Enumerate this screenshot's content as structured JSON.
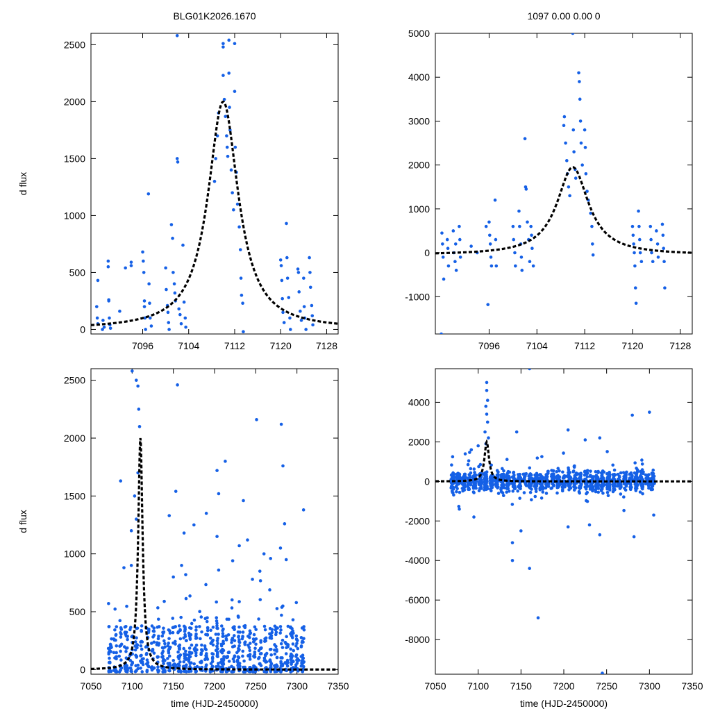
{
  "chart_data": [
    {
      "type": "scatter",
      "panel": "top-left",
      "title": "BLG01K2026.1670",
      "xlabel": "",
      "ylabel": "d flux",
      "xlim": [
        7087,
        7130
      ],
      "ylim": [
        -40,
        2600
      ],
      "xticks": [
        7096,
        7104,
        7112,
        7120,
        7128
      ],
      "yticks": [
        0,
        500,
        1000,
        1500,
        2000,
        2500
      ],
      "model": {
        "t0": 7110,
        "amp": 2000,
        "base": 0,
        "width": 3.2
      },
      "points": [
        [
          7088,
          200
        ],
        [
          7088.1,
          100
        ],
        [
          7088.2,
          430
        ],
        [
          7088.2,
          50
        ],
        [
          7089,
          0
        ],
        [
          7089.1,
          80
        ],
        [
          7089.3,
          20
        ],
        [
          7090,
          600
        ],
        [
          7090,
          550
        ],
        [
          7090.1,
          260
        ],
        [
          7090.1,
          250
        ],
        [
          7090.2,
          100
        ],
        [
          7090.3,
          40
        ],
        [
          7090.4,
          10
        ],
        [
          7092,
          160
        ],
        [
          7093,
          540
        ],
        [
          7094,
          590
        ],
        [
          7094,
          560
        ],
        [
          7096,
          680
        ],
        [
          7096.1,
          600
        ],
        [
          7096.2,
          500
        ],
        [
          7096.3,
          250
        ],
        [
          7096.3,
          200
        ],
        [
          7096.4,
          100
        ],
        [
          7096.5,
          0
        ],
        [
          7097,
          1190
        ],
        [
          7097.1,
          400
        ],
        [
          7097.2,
          230
        ],
        [
          7097.3,
          100
        ],
        [
          7097.5,
          30
        ],
        [
          7100,
          540
        ],
        [
          7100.1,
          350
        ],
        [
          7100.3,
          210
        ],
        [
          7100.4,
          150
        ],
        [
          7100.5,
          60
        ],
        [
          7100.6,
          0
        ],
        [
          7101,
          920
        ],
        [
          7101.2,
          800
        ],
        [
          7101.3,
          500
        ],
        [
          7101.5,
          400
        ],
        [
          7101.6,
          320
        ],
        [
          7101.7,
          250
        ],
        [
          7102,
          2580
        ],
        [
          7102,
          1500
        ],
        [
          7102.1,
          1470
        ],
        [
          7102.3,
          180
        ],
        [
          7102.5,
          130
        ],
        [
          7102.7,
          50
        ],
        [
          7103,
          740
        ],
        [
          7103.2,
          240
        ],
        [
          7103.4,
          100
        ],
        [
          7103.5,
          20
        ],
        [
          7108.5,
          1300
        ],
        [
          7108.7,
          1500
        ],
        [
          7109,
          1700
        ],
        [
          7109.2,
          1900
        ],
        [
          7110,
          2510
        ],
        [
          7110,
          2480
        ],
        [
          7110,
          2230
        ],
        [
          7110.2,
          2020
        ],
        [
          7110.4,
          1870
        ],
        [
          7110.6,
          1700
        ],
        [
          7110.7,
          1600
        ],
        [
          7110.8,
          1520
        ],
        [
          7111,
          2540
        ],
        [
          7111,
          2250
        ],
        [
          7111.1,
          1950
        ],
        [
          7111.2,
          1750
        ],
        [
          7111.4,
          1400
        ],
        [
          7111.6,
          1200
        ],
        [
          7111.8,
          1050
        ],
        [
          7112,
          2510
        ],
        [
          7112,
          2090
        ],
        [
          7112.1,
          1600
        ],
        [
          7112.3,
          1380
        ],
        [
          7112.5,
          1100
        ],
        [
          7112.8,
          900
        ],
        [
          7113,
          700
        ],
        [
          7113.1,
          450
        ],
        [
          7113.2,
          300
        ],
        [
          7113.4,
          230
        ],
        [
          7113.5,
          -20
        ],
        [
          7120,
          610
        ],
        [
          7120.1,
          560
        ],
        [
          7120.2,
          430
        ],
        [
          7120.3,
          270
        ],
        [
          7120.4,
          150
        ],
        [
          7120.6,
          60
        ],
        [
          7121,
          930
        ],
        [
          7121.1,
          630
        ],
        [
          7121.2,
          450
        ],
        [
          7121.4,
          280
        ],
        [
          7121.6,
          100
        ],
        [
          7121.7,
          0
        ],
        [
          7123,
          530
        ],
        [
          7123.1,
          500
        ],
        [
          7123.2,
          330
        ],
        [
          7123.4,
          160
        ],
        [
          7123.6,
          80
        ],
        [
          7124,
          450
        ],
        [
          7124.1,
          200
        ],
        [
          7124.2,
          100
        ],
        [
          7124.4,
          0
        ],
        [
          7125,
          630
        ],
        [
          7125.1,
          500
        ],
        [
          7125.2,
          370
        ],
        [
          7125.4,
          210
        ],
        [
          7125.5,
          120
        ],
        [
          7125.6,
          40
        ]
      ]
    },
    {
      "type": "scatter",
      "panel": "top-right",
      "title": "1097  0.00  0.00  0",
      "xlabel": "",
      "ylabel": "",
      "xlim": [
        7087,
        7130
      ],
      "ylim": [
        -1850,
        5000
      ],
      "xticks": [
        7096,
        7104,
        7112,
        7120,
        7128
      ],
      "yticks": [
        -1000,
        0,
        1000,
        2000,
        3000,
        4000,
        5000
      ],
      "model": {
        "t0": 7110,
        "amp": 2000,
        "base": -50,
        "width": 3.2
      },
      "points": [
        [
          7088,
          -1850
        ],
        [
          7088.1,
          450
        ],
        [
          7088.2,
          200
        ],
        [
          7088.3,
          -100
        ],
        [
          7088.4,
          -600
        ],
        [
          7089,
          300
        ],
        [
          7089.1,
          100
        ],
        [
          7089.2,
          -300
        ],
        [
          7090,
          500
        ],
        [
          7090.1,
          0
        ],
        [
          7090.3,
          -200
        ],
        [
          7090.4,
          200
        ],
        [
          7090.5,
          -400
        ],
        [
          7091,
          600
        ],
        [
          7091.1,
          300
        ],
        [
          7091.2,
          -100
        ],
        [
          7093,
          150
        ],
        [
          7094,
          0
        ],
        [
          7095.5,
          600
        ],
        [
          7096,
          700
        ],
        [
          7096.1,
          400
        ],
        [
          7096.2,
          200
        ],
        [
          7096.3,
          -100
        ],
        [
          7096.4,
          -300
        ],
        [
          7095.8,
          -1180
        ],
        [
          7097,
          1200
        ],
        [
          7097.1,
          300
        ],
        [
          7097.2,
          -300
        ],
        [
          7100,
          600
        ],
        [
          7100.1,
          300
        ],
        [
          7100.3,
          0
        ],
        [
          7100.4,
          -300
        ],
        [
          7101,
          950
        ],
        [
          7101.1,
          600
        ],
        [
          7101.3,
          200
        ],
        [
          7101.4,
          -100
        ],
        [
          7101.5,
          -400
        ],
        [
          7102,
          2600
        ],
        [
          7102.1,
          1500
        ],
        [
          7102.2,
          1450
        ],
        [
          7102.4,
          700
        ],
        [
          7102.6,
          300
        ],
        [
          7102.8,
          -200
        ],
        [
          7103,
          600
        ],
        [
          7103.1,
          400
        ],
        [
          7103.2,
          100
        ],
        [
          7103.4,
          -300
        ],
        [
          7108.5,
          2900
        ],
        [
          7108.6,
          3100
        ],
        [
          7108.8,
          2500
        ],
        [
          7109,
          2100
        ],
        [
          7109.1,
          1800
        ],
        [
          7109.3,
          1500
        ],
        [
          7109.5,
          1300
        ],
        [
          7110,
          5000
        ],
        [
          7110.1,
          2800
        ],
        [
          7110.2,
          2300
        ],
        [
          7110.4,
          1900
        ],
        [
          7110.5,
          1700
        ],
        [
          7111,
          4100
        ],
        [
          7111.1,
          3900
        ],
        [
          7111.2,
          3500
        ],
        [
          7111.3,
          3000
        ],
        [
          7111.4,
          2500
        ],
        [
          7111.6,
          2000
        ],
        [
          7112,
          2800
        ],
        [
          7112.1,
          2400
        ],
        [
          7112.2,
          1800
        ],
        [
          7112.4,
          1400
        ],
        [
          7112.6,
          1200
        ],
        [
          7113,
          900
        ],
        [
          7113.2,
          600
        ],
        [
          7113.3,
          200
        ],
        [
          7113.4,
          -50
        ],
        [
          7120,
          600
        ],
        [
          7120.1,
          400
        ],
        [
          7120.2,
          200
        ],
        [
          7120.3,
          0
        ],
        [
          7120.4,
          -300
        ],
        [
          7120.5,
          -800
        ],
        [
          7120.6,
          -1150
        ],
        [
          7121,
          950
        ],
        [
          7121.1,
          600
        ],
        [
          7121.2,
          300
        ],
        [
          7121.3,
          0
        ],
        [
          7121.5,
          -200
        ],
        [
          7123,
          600
        ],
        [
          7123.1,
          300
        ],
        [
          7123.2,
          0
        ],
        [
          7123.4,
          -200
        ],
        [
          7124,
          500
        ],
        [
          7124.2,
          200
        ],
        [
          7124.3,
          -100
        ],
        [
          7125,
          650
        ],
        [
          7125.1,
          400
        ],
        [
          7125.2,
          100
        ],
        [
          7125.3,
          -200
        ],
        [
          7125.4,
          -800
        ]
      ]
    },
    {
      "type": "scatter",
      "panel": "bottom-left",
      "title": "",
      "xlabel": "time (HJD-2450000)",
      "ylabel": "d flux",
      "xlim": [
        7050,
        7350
      ],
      "ylim": [
        -40,
        2600
      ],
      "xticks": [
        7050,
        7100,
        7150,
        7200,
        7250,
        7300,
        7350
      ],
      "yticks": [
        0,
        500,
        1000,
        1500,
        2000,
        2500
      ],
      "model": {
        "t0": 7110,
        "amp": 2000,
        "base": 0,
        "width": 3.2
      },
      "generated": {
        "t_min": 7073,
        "t_max": 7308,
        "count": 900,
        "typical_max": 400,
        "seed": 11
      },
      "points": [
        [
          7100,
          2580
        ],
        [
          7105,
          2500
        ],
        [
          7107,
          2450
        ],
        [
          7108,
          2250
        ],
        [
          7109,
          2100
        ],
        [
          7107,
          1700
        ],
        [
          7086,
          1630
        ],
        [
          7099,
          1200
        ],
        [
          7103,
          1500
        ],
        [
          7105,
          1300
        ],
        [
          7155,
          2460
        ],
        [
          7251,
          2160
        ],
        [
          7281,
          2120
        ],
        [
          7213,
          1800
        ],
        [
          7203,
          1720
        ],
        [
          7205,
          1520
        ],
        [
          7153,
          1540
        ],
        [
          7145,
          1330
        ],
        [
          7190,
          1350
        ],
        [
          7235,
          1460
        ],
        [
          7283,
          1760
        ],
        [
          7285,
          1260
        ],
        [
          7308,
          1380
        ],
        [
          7175,
          1250
        ],
        [
          7163,
          1180
        ],
        [
          7203,
          1150
        ],
        [
          7240,
          1120
        ],
        [
          7260,
          1000
        ],
        [
          7280,
          1050
        ],
        [
          7090,
          880
        ],
        [
          7099,
          900
        ],
        [
          7160,
          900
        ],
        [
          7205,
          860
        ],
        [
          7222,
          940
        ],
        [
          7230,
          1070
        ],
        [
          7268,
          960
        ],
        [
          7287,
          950
        ],
        [
          7150,
          800
        ],
        [
          7165,
          820
        ],
        [
          7246,
          780
        ],
        [
          7255,
          850
        ]
      ]
    },
    {
      "type": "scatter",
      "panel": "bottom-right",
      "title": "",
      "xlabel": "time (HJD-2450000)",
      "ylabel": "",
      "xlim": [
        7050,
        7350
      ],
      "ylim": [
        -9750,
        5700
      ],
      "xticks": [
        7050,
        7100,
        7150,
        7200,
        7250,
        7300,
        7350
      ],
      "yticks": [
        -8000,
        -6000,
        -4000,
        -2000,
        0,
        2000,
        4000
      ],
      "model": {
        "t0": 7110,
        "amp": 2000,
        "base": 0,
        "width": 3.2
      },
      "generated": {
        "t_min": 7070,
        "t_max": 7308,
        "count": 1300,
        "typical_spread": 450,
        "seed": 23
      },
      "points": [
        [
          7110,
          5000
        ],
        [
          7110,
          4600
        ],
        [
          7111,
          4100
        ],
        [
          7109,
          3800
        ],
        [
          7110,
          3400
        ],
        [
          7111,
          3000
        ],
        [
          7108,
          2500
        ],
        [
          7112,
          2200
        ],
        [
          7109,
          1900
        ],
        [
          7160,
          5700
        ],
        [
          7170,
          -6900
        ],
        [
          7245,
          -9700
        ],
        [
          7140,
          -3100
        ],
        [
          7140,
          -4000
        ],
        [
          7160,
          -4400
        ],
        [
          7150,
          -2500
        ],
        [
          7280,
          3350
        ],
        [
          7300,
          3500
        ],
        [
          7205,
          2600
        ],
        [
          7225,
          2100
        ],
        [
          7242,
          2200
        ],
        [
          7145,
          2500
        ],
        [
          7282,
          -2800
        ],
        [
          7242,
          -2700
        ],
        [
          7230,
          -2200
        ],
        [
          7205,
          -2300
        ],
        [
          7305,
          -1700
        ],
        [
          7095,
          -1800
        ],
        [
          7078,
          -1400
        ],
        [
          7092,
          1600
        ],
        [
          7100,
          1800
        ]
      ]
    }
  ]
}
